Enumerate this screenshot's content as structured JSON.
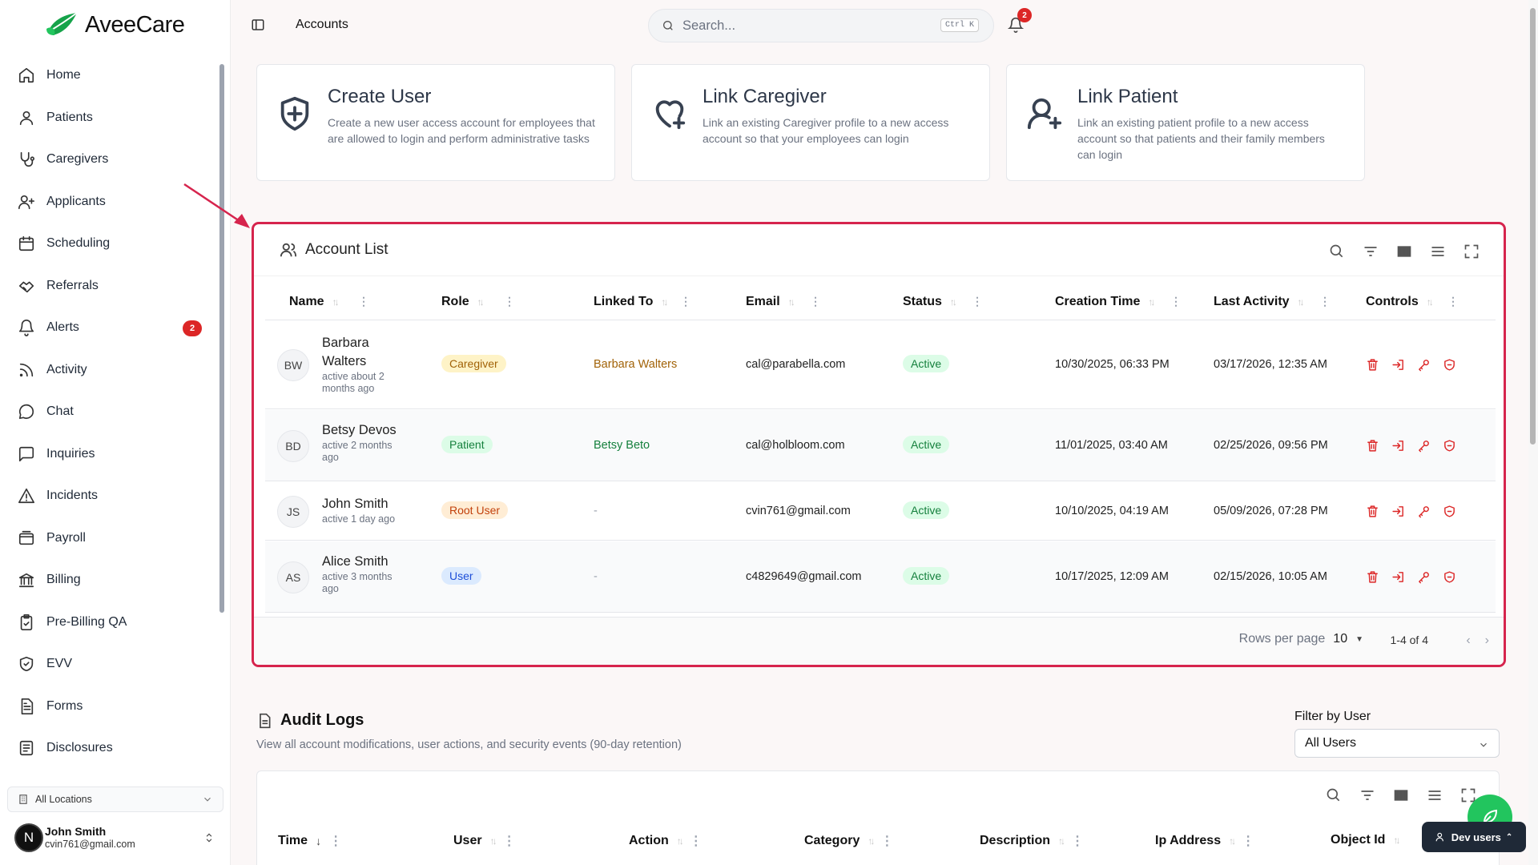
{
  "app": {
    "name": "AveeCare"
  },
  "sidebar": {
    "items": [
      {
        "label": "Home",
        "icon": "home-icon"
      },
      {
        "label": "Patients",
        "icon": "user-icon"
      },
      {
        "label": "Caregivers",
        "icon": "stethoscope-icon"
      },
      {
        "label": "Applicants",
        "icon": "user-plus-icon"
      },
      {
        "label": "Scheduling",
        "icon": "calendar-icon"
      },
      {
        "label": "Referrals",
        "icon": "handshake-icon"
      },
      {
        "label": "Alerts",
        "icon": "bell-icon",
        "badge": "2"
      },
      {
        "label": "Activity",
        "icon": "rss-icon"
      },
      {
        "label": "Chat",
        "icon": "chat-icon"
      },
      {
        "label": "Inquiries",
        "icon": "message-square-icon"
      },
      {
        "label": "Incidents",
        "icon": "warning-icon"
      },
      {
        "label": "Payroll",
        "icon": "wallet-icon"
      },
      {
        "label": "Billing",
        "icon": "bank-icon"
      },
      {
        "label": "Pre-Billing QA",
        "icon": "clipboard-check-icon"
      },
      {
        "label": "EVV",
        "icon": "shield-check-icon"
      },
      {
        "label": "Forms",
        "icon": "file-text-icon"
      },
      {
        "label": "Disclosures",
        "icon": "document-icon"
      }
    ],
    "location": "All Locations",
    "user": {
      "initial": "N",
      "name": "John Smith",
      "email": "cvin761@gmail.com"
    }
  },
  "header": {
    "breadcrumb": "Accounts",
    "search_placeholder": "Search...",
    "search_shortcut": "Ctrl K",
    "notifications": "2"
  },
  "cards": [
    {
      "title": "Create User",
      "desc": "Create a new user access account for employees that are allowed to login and perform administrative tasks",
      "icon": "shield-plus-icon"
    },
    {
      "title": "Link Caregiver",
      "desc": "Link an existing Caregiver profile to a new access account so that your employees can login",
      "icon": "heart-plus-icon"
    },
    {
      "title": "Link Patient",
      "desc": "Link an existing patient profile to a new access account so that patients and their family members can login",
      "icon": "user-plus-icon"
    }
  ],
  "account_list": {
    "title": "Account List",
    "columns": [
      "Name",
      "Role",
      "Linked To",
      "Email",
      "Status",
      "Creation Time",
      "Last Activity",
      "Controls"
    ],
    "rows": [
      {
        "initials": "BW",
        "name": "Barbara Walters",
        "sub": "active about 2 months ago",
        "role": "Caregiver",
        "linked": "Barbara Walters",
        "email": "cal@parabella.com",
        "status": "Active",
        "created": "10/30/2025, 06:33 PM",
        "last": "03/17/2026, 12:35 AM"
      },
      {
        "initials": "BD",
        "name": "Betsy Devos",
        "sub": "active 2 months ago",
        "role": "Patient",
        "linked": "Betsy Beto",
        "email": "cal@holbloom.com",
        "status": "Active",
        "created": "11/01/2025, 03:40 AM",
        "last": "02/25/2026, 09:56 PM"
      },
      {
        "initials": "JS",
        "name": "John Smith",
        "sub": "active 1 day ago",
        "role": "Root User",
        "linked": "-",
        "email": "cvin761@gmail.com",
        "status": "Active",
        "created": "10/10/2025, 04:19 AM",
        "last": "05/09/2026, 07:28 PM"
      },
      {
        "initials": "AS",
        "name": "Alice Smith",
        "sub": "active 3 months ago",
        "role": "User",
        "linked": "-",
        "email": "c4829649@gmail.com",
        "status": "Active",
        "created": "10/17/2025, 12:09 AM",
        "last": "02/15/2026, 10:05 AM"
      }
    ],
    "rows_per_page_label": "Rows per page",
    "rows_per_page": "10",
    "range": "1-4 of 4"
  },
  "audit": {
    "title": "Audit Logs",
    "desc": "View all account modifications, user actions, and security events (90-day retention)",
    "filter_label": "Filter by User",
    "filter_value": "All Users",
    "columns": [
      "Time",
      "User",
      "Action",
      "Category",
      "Description",
      "Ip Address",
      "Object Id"
    ]
  },
  "dev_users": "Dev users",
  "colors": {
    "accent": "#d6244d",
    "brand_green": "#22c55e",
    "danger": "#dc2626"
  }
}
